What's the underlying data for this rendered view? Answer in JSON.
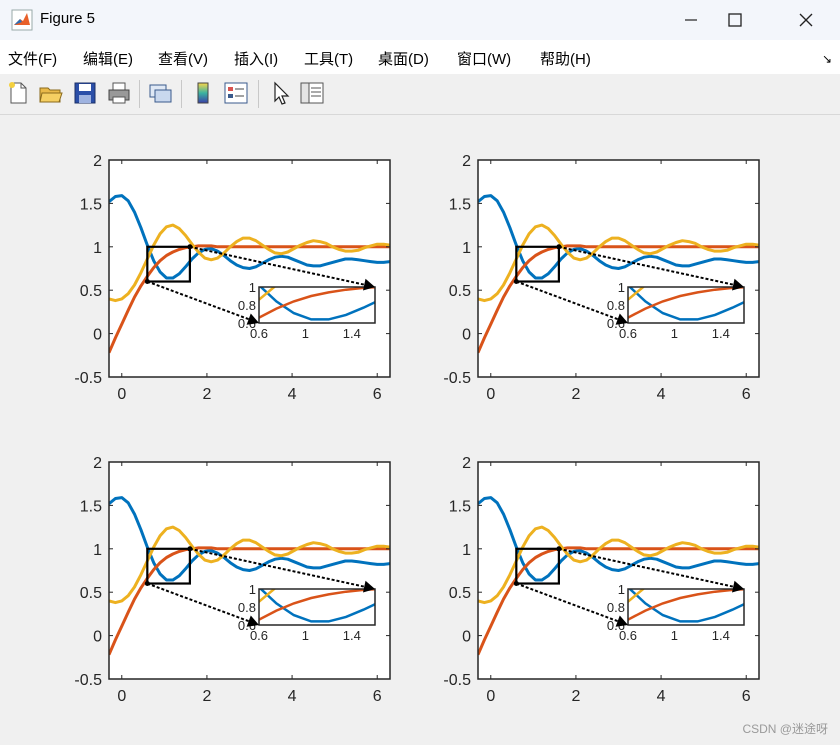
{
  "window": {
    "title": "Figure 5"
  },
  "menu": [
    "文件(F)",
    "编辑(E)",
    "查看(V)",
    "插入(I)",
    "工具(T)",
    "桌面(D)",
    "窗口(W)",
    "帮助(H)"
  ],
  "toolbar": [
    "new-figure-icon",
    "open-folder-icon",
    "save-icon",
    "print-icon",
    "link-plot-icon",
    "colorbar-icon",
    "legend-icon",
    "pointer-icon",
    "property-inspector-icon"
  ],
  "colors": {
    "series1": "#0072bd",
    "series2": "#d95319",
    "series3": "#edb120"
  },
  "chart_data": [
    {
      "type": "line",
      "position": "top-left",
      "xlim": [
        -0.3,
        6.3
      ],
      "ylim": [
        -0.5,
        2
      ],
      "xticks": [
        "0",
        "2",
        "4",
        "6"
      ],
      "yticks": [
        "-0.5",
        "0",
        "0.5",
        "1",
        "1.5",
        "2"
      ],
      "zoom_region": {
        "x": [
          0.6,
          1.6
        ],
        "y": [
          0.6,
          1.0
        ]
      },
      "inset": {
        "xticks": [
          "0.6",
          "1",
          "1.4"
        ],
        "yticks": [
          "0.6",
          "0.8",
          "1"
        ]
      }
    },
    {
      "type": "line",
      "position": "top-right",
      "xlim": [
        -0.3,
        6.3
      ],
      "ylim": [
        -0.5,
        2
      ],
      "xticks": [
        "0",
        "2",
        "4",
        "6"
      ],
      "yticks": [
        "-0.5",
        "0",
        "0.5",
        "1",
        "1.5",
        "2"
      ],
      "zoom_region": {
        "x": [
          0.6,
          1.6
        ],
        "y": [
          0.6,
          1.0
        ]
      },
      "inset": {
        "xticks": [
          "0.6",
          "1",
          "1.4"
        ],
        "yticks": [
          "0.6",
          "0.8",
          "1"
        ]
      }
    },
    {
      "type": "line",
      "position": "bottom-left",
      "xlim": [
        -0.3,
        6.3
      ],
      "ylim": [
        -0.5,
        2
      ],
      "xticks": [
        "0",
        "2",
        "4",
        "6"
      ],
      "yticks": [
        "-0.5",
        "0",
        "0.5",
        "1",
        "1.5",
        "2"
      ],
      "zoom_region": {
        "x": [
          0.6,
          1.6
        ],
        "y": [
          0.6,
          1.0
        ]
      },
      "inset": {
        "xticks": [
          "0.6",
          "1",
          "1.4"
        ],
        "yticks": [
          "0.6",
          "0.8",
          "1"
        ]
      }
    },
    {
      "type": "line",
      "position": "bottom-right",
      "xlim": [
        -0.3,
        6.3
      ],
      "ylim": [
        -0.5,
        2
      ],
      "xticks": [
        "0",
        "2",
        "4",
        "6"
      ],
      "yticks": [
        "-0.5",
        "0",
        "0.5",
        "1",
        "1.5",
        "2"
      ],
      "zoom_region": {
        "x": [
          0.6,
          1.6
        ],
        "y": [
          0.6,
          1.0
        ]
      },
      "inset": {
        "xticks": [
          "0.6",
          "1",
          "1.4"
        ],
        "yticks": [
          "0.6",
          "0.8",
          "1"
        ]
      }
    }
  ],
  "series_data": {
    "x_step": 0.15,
    "x_start": -0.3,
    "series1": [
      1.52,
      1.58,
      1.59,
      1.53,
      1.4,
      1.22,
      1.02,
      0.84,
      0.71,
      0.64,
      0.64,
      0.69,
      0.77,
      0.86,
      0.93,
      0.97,
      0.98,
      0.95,
      0.9,
      0.84,
      0.79,
      0.76,
      0.75,
      0.77,
      0.81,
      0.85,
      0.88,
      0.89,
      0.88,
      0.85,
      0.82,
      0.79,
      0.78,
      0.78,
      0.8,
      0.82,
      0.84,
      0.86,
      0.86,
      0.85,
      0.84,
      0.83,
      0.82,
      0.82,
      0.83,
      0.84
    ],
    "series2": [
      -0.22,
      -0.05,
      0.11,
      0.27,
      0.42,
      0.55,
      0.66,
      0.76,
      0.84,
      0.9,
      0.94,
      0.97,
      0.99,
      1.0,
      1.01,
      1.01,
      1.01,
      1.0,
      1.0,
      1.0,
      1.0,
      1.0,
      1.0,
      1.0,
      1.0,
      1.0,
      1.0,
      1.0,
      1.0,
      1.0,
      1.0,
      1.0,
      1.0,
      1.0,
      1.0,
      1.0,
      1.0,
      1.0,
      1.0,
      1.0,
      1.0,
      1.0,
      1.0,
      1.0,
      1.0,
      1.0
    ],
    "series3": [
      0.4,
      0.38,
      0.4,
      0.46,
      0.56,
      0.7,
      0.86,
      1.02,
      1.15,
      1.23,
      1.25,
      1.21,
      1.13,
      1.03,
      0.94,
      0.87,
      0.85,
      0.87,
      0.93,
      1.0,
      1.06,
      1.1,
      1.1,
      1.07,
      1.02,
      0.97,
      0.93,
      0.92,
      0.94,
      0.98,
      1.02,
      1.05,
      1.07,
      1.06,
      1.04,
      1.0,
      0.97,
      0.95,
      0.95,
      0.96,
      0.99,
      1.01,
      1.03,
      1.03,
      1.02,
      1.0
    ]
  },
  "watermark": "CSDN @迷途呀"
}
